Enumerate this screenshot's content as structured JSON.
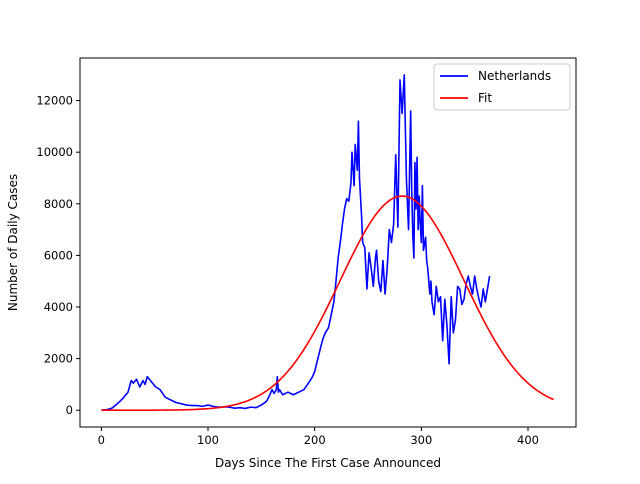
{
  "chart_data": {
    "type": "line",
    "title": "",
    "xlabel": "Days Since The First Case Announced",
    "ylabel": "Number of Daily Cases",
    "xlim": [
      -20,
      445
    ],
    "ylim": [
      -650,
      13650
    ],
    "xticks": [
      0,
      100,
      200,
      300,
      400
    ],
    "yticks": [
      0,
      2000,
      4000,
      6000,
      8000,
      10000,
      12000
    ],
    "grid": false,
    "legend_position": "top-right",
    "series": [
      {
        "name": "Netherlands",
        "color": "#0000ff",
        "x": [
          0,
          5,
          10,
          15,
          20,
          25,
          28,
          30,
          33,
          36,
          39,
          41,
          43,
          45,
          48,
          51,
          55,
          60,
          65,
          70,
          75,
          80,
          85,
          90,
          95,
          100,
          105,
          110,
          115,
          120,
          125,
          130,
          135,
          140,
          145,
          150,
          155,
          158,
          160,
          162,
          164,
          165,
          166,
          167,
          170,
          175,
          180,
          185,
          190,
          195,
          198,
          200,
          203,
          206,
          208,
          210,
          213,
          215,
          218,
          220,
          222,
          224,
          226,
          228,
          230,
          232,
          234,
          235,
          237,
          238,
          240,
          241,
          242,
          244,
          245,
          247,
          249,
          251,
          253,
          255,
          257,
          258,
          260,
          262,
          264,
          266,
          268,
          270,
          272,
          274,
          276,
          278,
          280,
          282,
          284,
          286,
          288,
          290,
          291,
          292,
          293,
          294,
          295,
          296,
          297,
          298,
          299,
          300,
          301,
          302,
          304,
          305,
          306,
          308,
          309,
          310,
          312,
          314,
          316,
          318,
          320,
          322,
          324,
          326,
          328,
          330,
          332,
          334,
          336,
          338,
          340,
          342,
          344,
          346,
          348,
          350,
          352,
          354,
          356,
          358,
          360,
          362,
          364
        ],
        "y": [
          0,
          20,
          80,
          250,
          450,
          700,
          1150,
          1050,
          1200,
          900,
          1150,
          1000,
          1300,
          1200,
          1050,
          900,
          800,
          500,
          400,
          300,
          250,
          200,
          180,
          180,
          150,
          200,
          150,
          120,
          130,
          120,
          80,
          100,
          70,
          120,
          100,
          200,
          350,
          600,
          800,
          650,
          800,
          1300,
          700,
          800,
          600,
          700,
          600,
          700,
          800,
          1100,
          1300,
          1500,
          2000,
          2500,
          2800,
          3000,
          3200,
          3600,
          4200,
          5000,
          5900,
          6500,
          7200,
          7800,
          8200,
          8100,
          8800,
          10000,
          8700,
          10300,
          9300,
          11200,
          9000,
          7500,
          6500,
          6300,
          4700,
          6100,
          5500,
          4800,
          5900,
          6200,
          5000,
          4600,
          5800,
          4500,
          5500,
          7000,
          6500,
          7200,
          9900,
          7100,
          12800,
          11500,
          13000,
          9000,
          7000,
          11600,
          8500,
          6800,
          5900,
          9600,
          7800,
          9800,
          7000,
          8300,
          7200,
          6500,
          8700,
          6200,
          6700,
          5800,
          5500,
          4500,
          5000,
          4200,
          3700,
          4800,
          4200,
          4400,
          2700,
          4300,
          3300,
          1800,
          4400,
          3000,
          3500,
          4800,
          4700,
          4100,
          4300,
          4900,
          5200,
          4800,
          4500,
          5200,
          4700,
          4300,
          4000,
          4700,
          4200,
          4700,
          5200
        ]
      },
      {
        "name": "Fit",
        "color": "#ff0000",
        "curve": "gaussian",
        "amplitude": 8300,
        "center": 282,
        "sigma": 58,
        "x_range": [
          0,
          425
        ]
      }
    ]
  }
}
